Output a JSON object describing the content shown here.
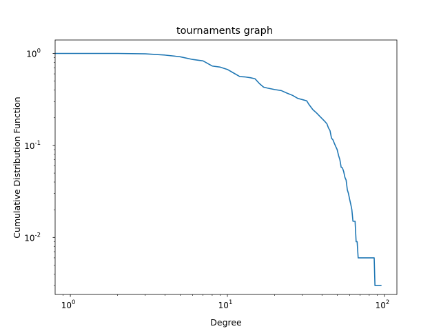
{
  "chart_data": {
    "type": "line",
    "title": "tournaments graph",
    "xlabel": "Degree",
    "ylabel": "Cumulative Distribution Function",
    "xscale": "log",
    "yscale": "log",
    "xlim": [
      0.8,
      120
    ],
    "ylim": [
      0.0024,
      1.4
    ],
    "grid": false,
    "xticks": [
      {
        "value": 1,
        "label_base": "10",
        "label_exp": "0"
      },
      {
        "value": 10,
        "label_base": "10",
        "label_exp": "1"
      },
      {
        "value": 100,
        "label_base": "10",
        "label_exp": "2"
      }
    ],
    "yticks": [
      {
        "value": 1,
        "label_base": "10",
        "label_exp": "0"
      },
      {
        "value": 0.1,
        "label_base": "10",
        "label_exp": "-1"
      },
      {
        "value": 0.01,
        "label_base": "10",
        "label_exp": "-2"
      }
    ],
    "series": [
      {
        "color": "#1f77b4",
        "x": [
          0.8,
          1,
          2,
          3,
          4,
          5,
          6,
          7,
          8,
          9,
          10,
          11,
          12,
          13,
          14,
          15,
          16,
          17,
          18,
          20,
          22,
          24,
          26,
          28,
          30,
          32,
          33,
          35,
          37,
          39,
          41,
          42,
          43,
          44,
          45,
          46,
          47,
          48,
          49,
          50,
          51,
          52,
          53,
          54,
          55,
          56,
          57,
          58,
          59,
          60,
          61,
          62,
          63,
          64,
          65,
          66,
          67,
          68,
          68.5,
          69,
          70,
          71,
          86,
          87,
          88,
          95
        ],
        "y": [
          1.0,
          1.0,
          1.0,
          0.99,
          0.96,
          0.92,
          0.86,
          0.83,
          0.73,
          0.71,
          0.67,
          0.61,
          0.56,
          0.555,
          0.545,
          0.53,
          0.47,
          0.43,
          0.42,
          0.405,
          0.395,
          0.37,
          0.35,
          0.325,
          0.315,
          0.305,
          0.28,
          0.245,
          0.225,
          0.205,
          0.188,
          0.18,
          0.172,
          0.155,
          0.145,
          0.12,
          0.115,
          0.105,
          0.097,
          0.09,
          0.078,
          0.07,
          0.058,
          0.057,
          0.052,
          0.045,
          0.042,
          0.033,
          0.03,
          0.026,
          0.023,
          0.02,
          0.015,
          0.015,
          0.015,
          0.009,
          0.009,
          0.006,
          0.006,
          0.006,
          0.006,
          0.006,
          0.006,
          0.003,
          0.003,
          0.003
        ]
      }
    ]
  }
}
